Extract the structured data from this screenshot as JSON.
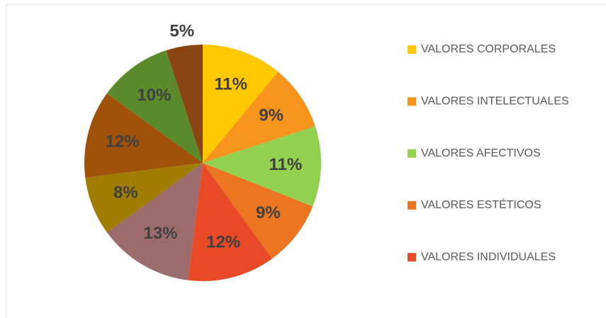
{
  "chart_data": {
    "type": "pie",
    "categories": [
      "VALORES CORPORALES",
      "VALORES INTELECTUALES",
      "VALORES AFECTIVOS",
      "VALORES ESTÉTICOS",
      "VALORES INDIVIDUALES",
      null,
      null,
      null,
      null,
      null
    ],
    "values": [
      11,
      9,
      11,
      9,
      12,
      13,
      8,
      12,
      10,
      5
    ],
    "value_labels": [
      "11%",
      "9%",
      "11%",
      "9%",
      "12%",
      "13%",
      "8%",
      "12%",
      "10%",
      "5%"
    ],
    "colors": [
      "#ffc800",
      "#f7941d",
      "#92d050",
      "#eb7520",
      "#e84a27",
      "#9c6b6b",
      "#a07c00",
      "#a0520a",
      "#5b8a2a",
      "#8b4513"
    ]
  }
}
